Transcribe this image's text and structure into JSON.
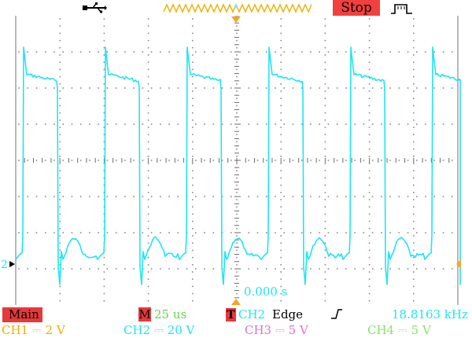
{
  "top": {
    "usb_icon": "usb-icon",
    "run_status": "Stop",
    "trigger_type_icon": "rising-pulse-icon"
  },
  "screen": {
    "ch2_marker": "2",
    "time_readout": "0.000 s"
  },
  "status": {
    "main_label": "Main",
    "m_label": "M",
    "timebase": "25 us",
    "t_label": "T",
    "trigger_source": "CH2",
    "trigger_mode": "Edge",
    "frequency": "18.8163 kHz",
    "channels": [
      {
        "name": "CH1",
        "coupling": "⎓",
        "scale": "2 V",
        "color": "#e8b000"
      },
      {
        "name": "CH2",
        "coupling": "⎓",
        "scale": "20 V",
        "color": "#1ee6f0"
      },
      {
        "name": "CH3",
        "coupling": "⎓",
        "scale": "5 V",
        "color": "#e46fd0"
      },
      {
        "name": "CH4",
        "coupling": "⎓",
        "scale": "5 V",
        "color": "#86e46a"
      }
    ]
  },
  "colors": {
    "trace": "#1ee6f0",
    "trigger_marker": "#f5a623",
    "grid": "#8a8a8a",
    "status_red": "#e8383a"
  }
}
